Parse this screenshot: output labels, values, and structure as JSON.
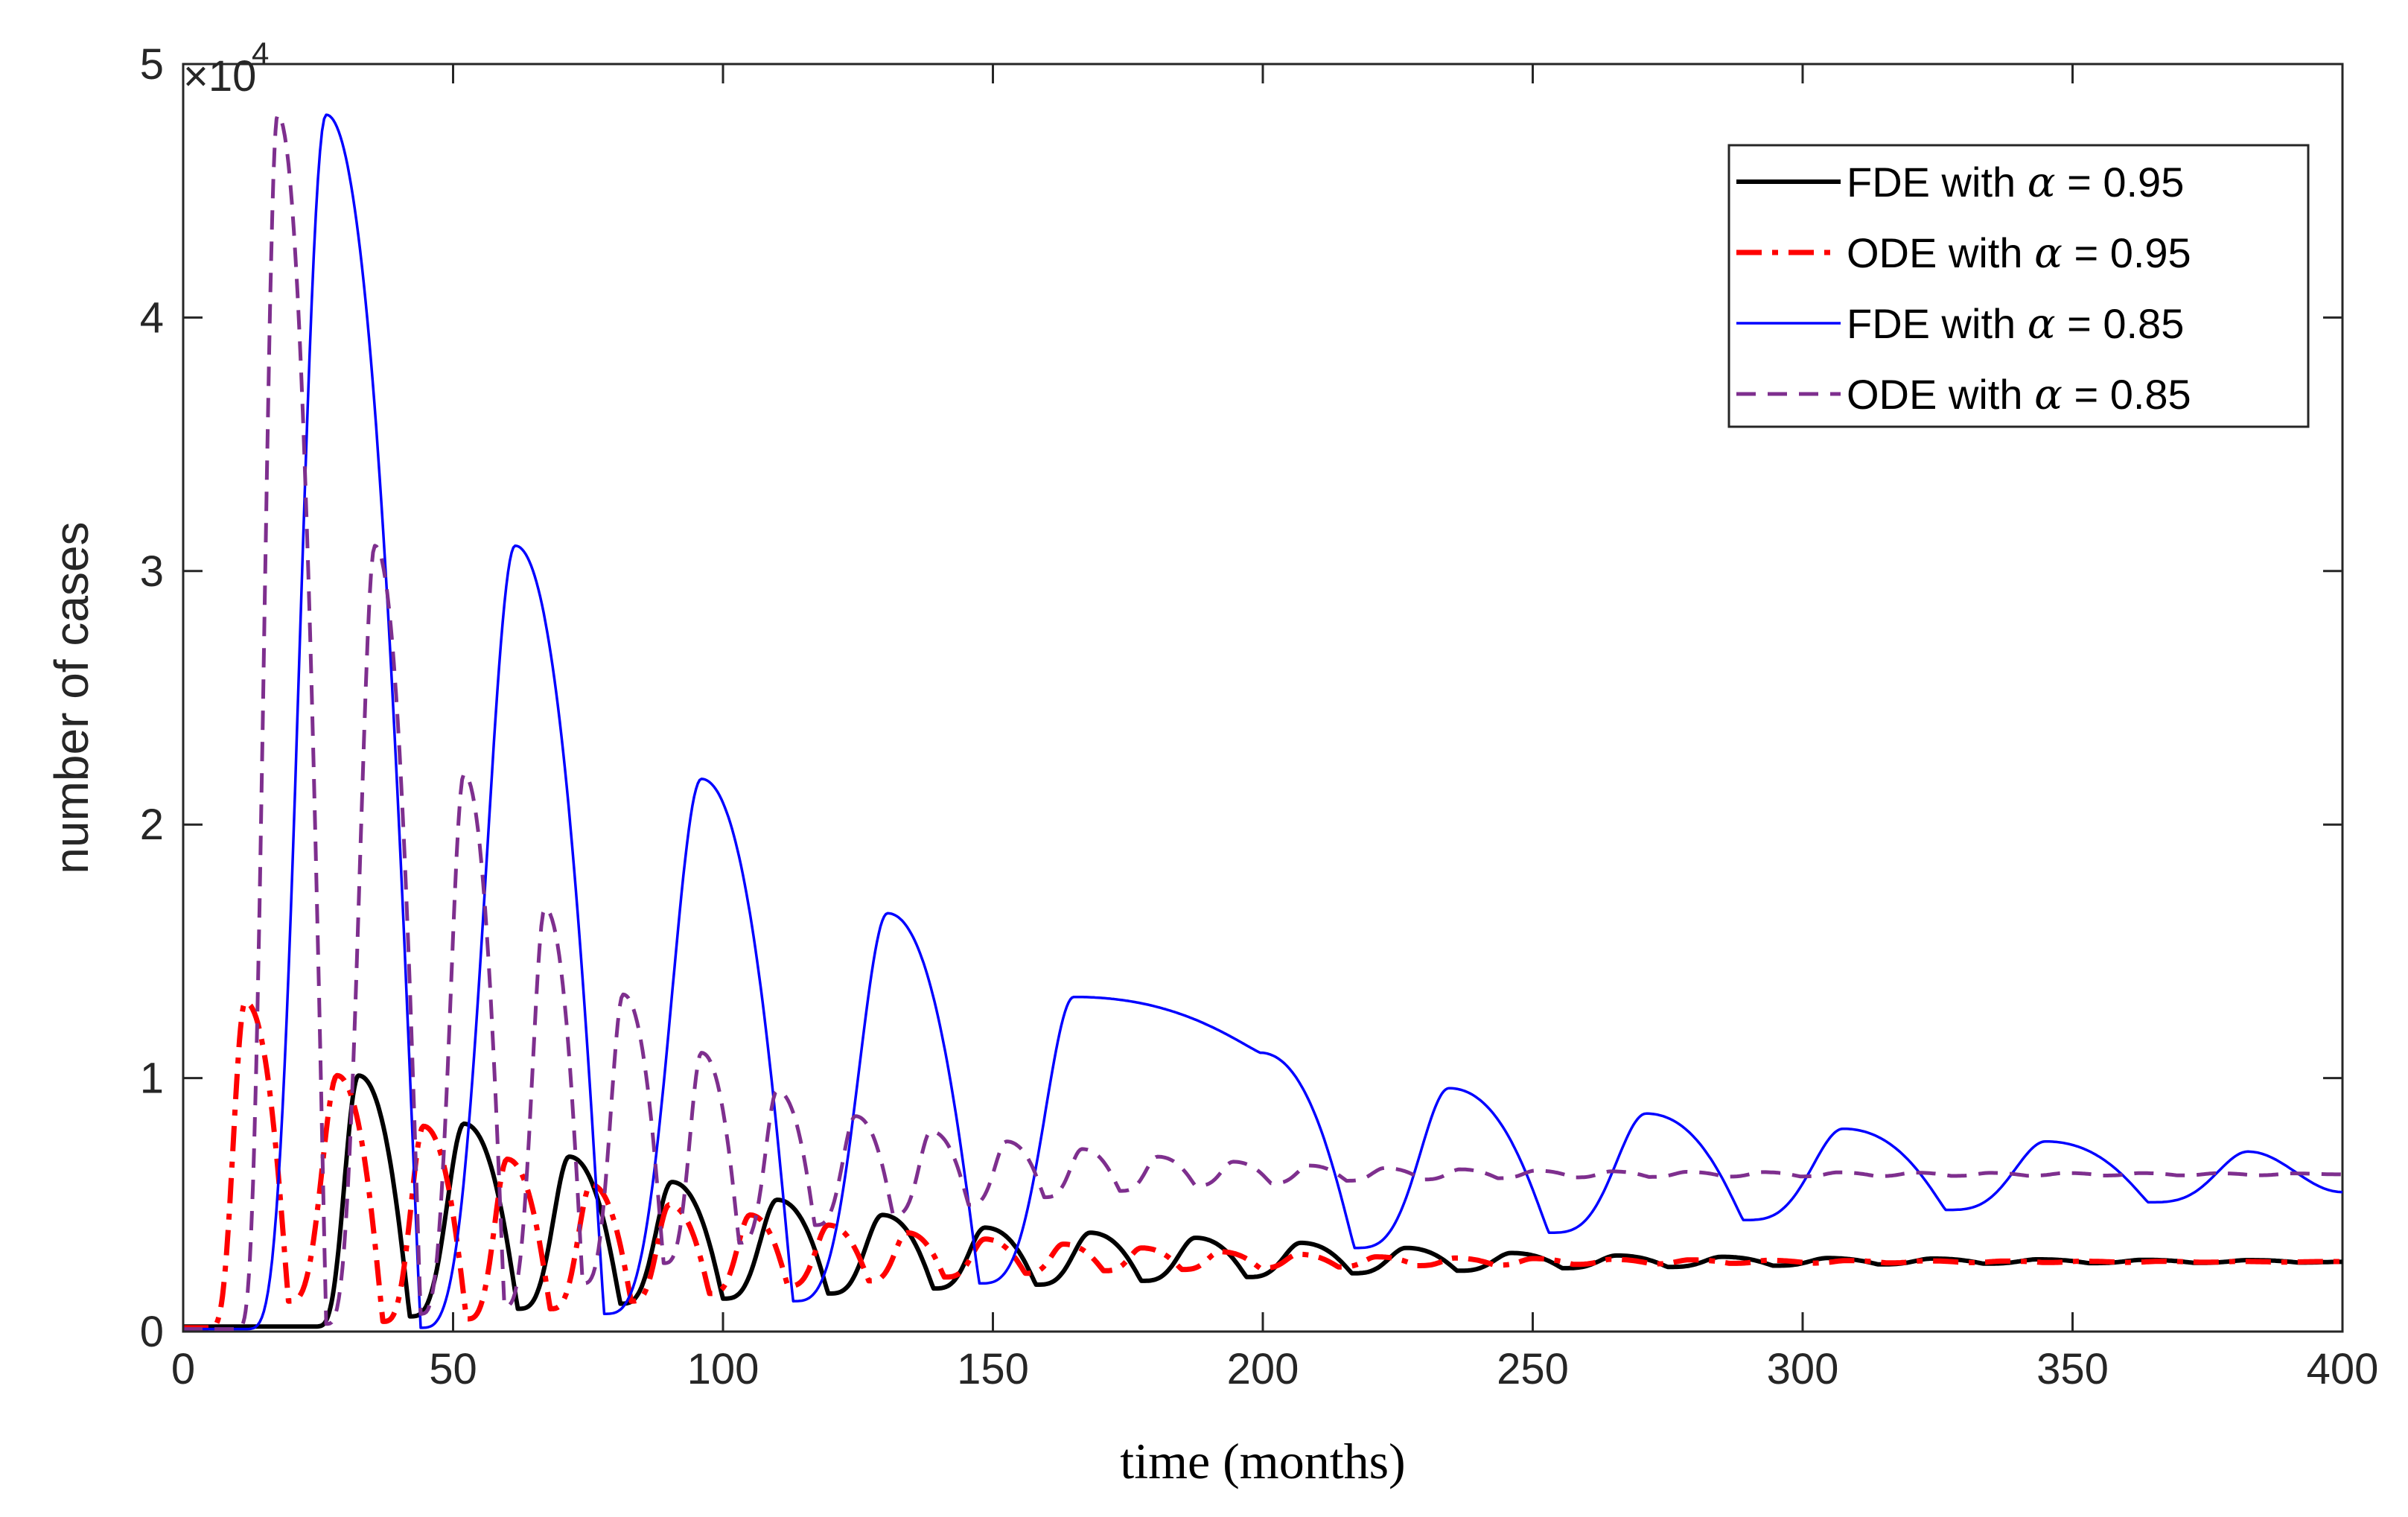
{
  "chart_data": {
    "type": "line",
    "title": "",
    "xlabel": "time (months)",
    "ylabel": "number of cases",
    "xlim": [
      0,
      400
    ],
    "ylim": [
      0,
      50000
    ],
    "xticks": [
      0,
      50,
      100,
      150,
      200,
      250,
      300,
      350,
      400
    ],
    "xtick_labels": [
      "0",
      "50",
      "100",
      "150",
      "200",
      "250",
      "300",
      "350",
      "400"
    ],
    "yticks": [
      0,
      10000,
      20000,
      30000,
      40000,
      50000
    ],
    "ytick_labels": [
      "0",
      "1",
      "2",
      "3",
      "4",
      "5"
    ],
    "y_exponent": {
      "times": "×10",
      "power": "4"
    },
    "grid": false,
    "legend_position": "top-right",
    "series": [
      {
        "name": "FDE with α = 0.95",
        "label_prefix": "FDE with ",
        "label_symbol": "α",
        "label_suffix": " = 0.95",
        "color": "#000000",
        "dash": "solid",
        "baseline": 200,
        "settle": 2750,
        "peaks": [
          [
            32.5,
            10100
          ],
          [
            52,
            8200
          ],
          [
            71.5,
            6900
          ],
          [
            90.5,
            5900
          ],
          [
            110,
            5200
          ],
          [
            129.5,
            4600
          ],
          [
            148.5,
            4100
          ],
          [
            168,
            3900
          ],
          [
            187.5,
            3700
          ],
          [
            207,
            3500
          ],
          [
            226.5,
            3300
          ],
          [
            246,
            3100
          ],
          [
            265.5,
            3000
          ],
          [
            285,
            2950
          ],
          [
            304.5,
            2900
          ],
          [
            324,
            2880
          ],
          [
            343.5,
            2850
          ],
          [
            363,
            2830
          ],
          [
            382.5,
            2820
          ]
        ],
        "troughs": [
          [
            42,
            600
          ],
          [
            62,
            900
          ],
          [
            81,
            1100
          ],
          [
            100,
            1300
          ],
          [
            119.5,
            1500
          ],
          [
            139,
            1700
          ],
          [
            158,
            1850
          ],
          [
            177.5,
            2000
          ],
          [
            197,
            2150
          ],
          [
            216.5,
            2300
          ],
          [
            236,
            2400
          ],
          [
            255.5,
            2500
          ],
          [
            275,
            2550
          ],
          [
            294.5,
            2600
          ],
          [
            314,
            2650
          ],
          [
            333.5,
            2680
          ],
          [
            353,
            2700
          ],
          [
            372.5,
            2710
          ],
          [
            392,
            2720
          ]
        ],
        "tail": [
          [
            400,
            2750
          ]
        ]
      },
      {
        "name": "ODE with α = 0.95",
        "label_prefix": "ODE with ",
        "label_symbol": "α",
        "label_suffix": " = 0.95",
        "color": "#ff0000",
        "dash": "dashdot",
        "baseline": 150,
        "settle": 2750,
        "peaks": [
          [
            11.5,
            13000
          ],
          [
            28.5,
            10100
          ],
          [
            44.5,
            8100
          ],
          [
            60,
            6800
          ],
          [
            75.5,
            5800
          ],
          [
            90,
            5000
          ],
          [
            105,
            4600
          ],
          [
            119.5,
            4200
          ],
          [
            134,
            3900
          ],
          [
            148.5,
            3650
          ],
          [
            163,
            3450
          ],
          [
            177.5,
            3300
          ],
          [
            192,
            3150
          ],
          [
            206.5,
            3050
          ],
          [
            221,
            2950
          ],
          [
            235.5,
            2900
          ],
          [
            250,
            2880
          ],
          [
            264.5,
            2850
          ],
          [
            279,
            2830
          ],
          [
            293.5,
            2810
          ],
          [
            308,
            2800
          ],
          [
            322.5,
            2790
          ],
          [
            337,
            2780
          ],
          [
            351.5,
            2775
          ],
          [
            366,
            2770
          ],
          [
            380.5,
            2765
          ],
          [
            395,
            2760
          ]
        ],
        "troughs": [
          [
            19.5,
            1200
          ],
          [
            37,
            400
          ],
          [
            52.5,
            500
          ],
          [
            68,
            900
          ],
          [
            83,
            1200
          ],
          [
            97.5,
            1500
          ],
          [
            112,
            1800
          ],
          [
            127,
            2000
          ],
          [
            141,
            2150
          ],
          [
            156,
            2300
          ],
          [
            170.5,
            2400
          ],
          [
            185,
            2450
          ],
          [
            199.5,
            2500
          ],
          [
            214,
            2550
          ],
          [
            228.5,
            2600
          ],
          [
            243,
            2620
          ],
          [
            257.5,
            2650
          ],
          [
            272,
            2670
          ],
          [
            286.5,
            2690
          ],
          [
            301,
            2700
          ],
          [
            315.5,
            2710
          ],
          [
            330,
            2720
          ],
          [
            344.5,
            2725
          ],
          [
            359,
            2730
          ],
          [
            373.5,
            2735
          ],
          [
            388,
            2740
          ]
        ],
        "tail": [
          [
            400,
            2760
          ]
        ]
      },
      {
        "name": "FDE with α = 0.85",
        "label_prefix": "FDE with ",
        "label_symbol": "α",
        "label_suffix": " = 0.85",
        "color": "#0000ff",
        "dash": "solid",
        "baseline": 100,
        "settle": 5500,
        "peaks": [
          [
            26.5,
            48000
          ],
          [
            61.5,
            31000
          ],
          [
            96,
            21800
          ],
          [
            130.5,
            16500
          ],
          [
            165,
            13200
          ],
          [
            199.5,
            11000
          ],
          [
            234.5,
            9600
          ],
          [
            271,
            8600
          ],
          [
            307.5,
            8000
          ],
          [
            345,
            7500
          ],
          [
            382.5,
            7100
          ]
        ],
        "troughs": [
          [
            44,
            150
          ],
          [
            78,
            700
          ],
          [
            113,
            1200
          ],
          [
            147.5,
            1900
          ],
          [
            217,
            3300
          ],
          [
            253,
            3900
          ],
          [
            289,
            4400
          ],
          [
            326.5,
            4800
          ],
          [
            364,
            5100
          ]
        ],
        "tail": [
          [
            400,
            5500
          ]
        ]
      },
      {
        "name": "ODE with α = 0.85",
        "label_prefix": "ODE with ",
        "label_symbol": "α",
        "label_suffix": " = 0.85",
        "color": "#7e2f8e",
        "dash": "dashed",
        "baseline": 100,
        "settle": 6200,
        "peaks": [
          [
            17.5,
            48000
          ],
          [
            35.5,
            31000
          ],
          [
            52,
            22000
          ],
          [
            67,
            16700
          ],
          [
            81.5,
            13300
          ],
          [
            96,
            11000
          ],
          [
            110,
            9500
          ],
          [
            124.5,
            8500
          ],
          [
            138.5,
            7900
          ],
          [
            152.5,
            7500
          ],
          [
            166.5,
            7200
          ],
          [
            180.5,
            6900
          ],
          [
            194.5,
            6700
          ],
          [
            208.5,
            6550
          ],
          [
            222.5,
            6450
          ],
          [
            236.5,
            6400
          ],
          [
            250.5,
            6350
          ],
          [
            264.5,
            6320
          ],
          [
            278.5,
            6300
          ],
          [
            292.5,
            6290
          ],
          [
            306.5,
            6280
          ],
          [
            320.5,
            6270
          ],
          [
            334.5,
            6260
          ],
          [
            348.5,
            6255
          ],
          [
            362.5,
            6250
          ],
          [
            376.5,
            6245
          ],
          [
            390.5,
            6240
          ]
        ],
        "troughs": [
          [
            26.5,
            300
          ],
          [
            44,
            700
          ],
          [
            59.5,
            1000
          ],
          [
            74,
            1900
          ],
          [
            89,
            2700
          ],
          [
            103,
            3500
          ],
          [
            117,
            4200
          ],
          [
            131.5,
            4600
          ],
          [
            145.5,
            5000
          ],
          [
            159.5,
            5300
          ],
          [
            173.5,
            5550
          ],
          [
            187.5,
            5750
          ],
          [
            201.5,
            5850
          ],
          [
            215.5,
            5950
          ],
          [
            229.5,
            6000
          ],
          [
            243.5,
            6050
          ],
          [
            257.5,
            6080
          ],
          [
            271.5,
            6100
          ],
          [
            285.5,
            6110
          ],
          [
            299.5,
            6120
          ],
          [
            313.5,
            6130
          ],
          [
            327.5,
            6140
          ],
          [
            341.5,
            6150
          ],
          [
            355.5,
            6155
          ],
          [
            369.5,
            6160
          ],
          [
            383.5,
            6165
          ]
        ],
        "tail": [
          [
            400,
            6200
          ]
        ]
      }
    ]
  }
}
